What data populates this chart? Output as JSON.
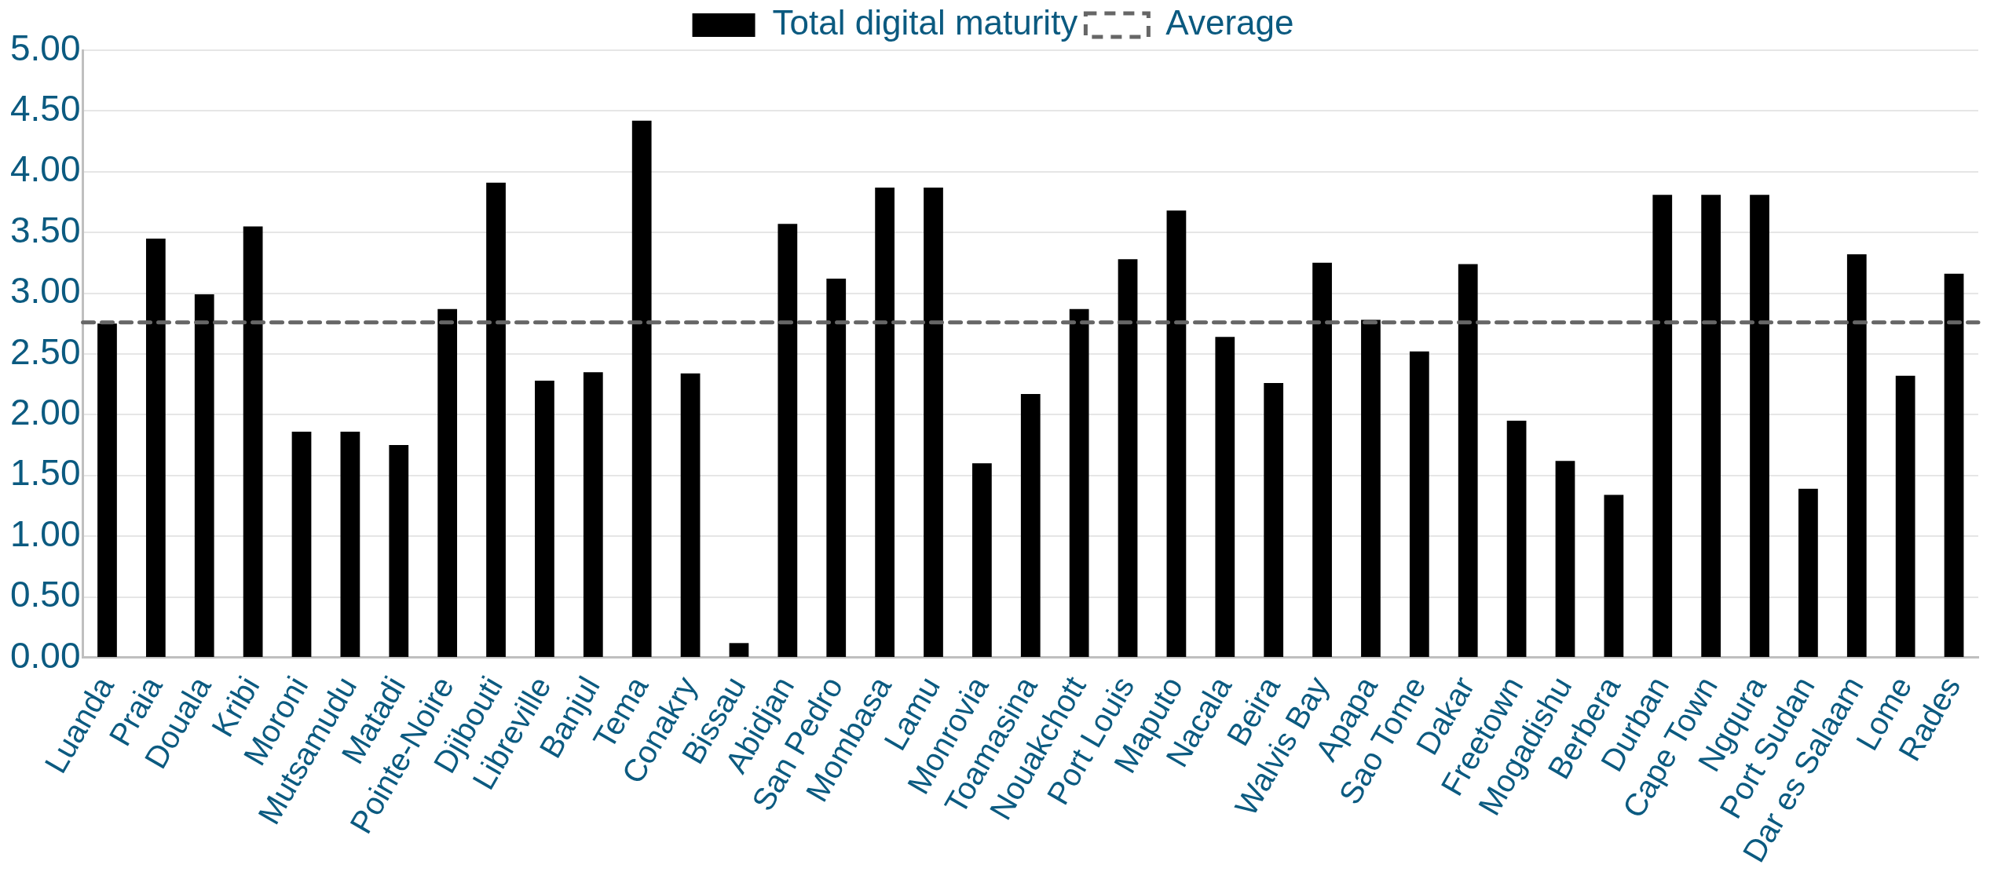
{
  "chart_data": {
    "type": "bar",
    "categories": [
      "Luanda",
      "Praia",
      "Douala",
      "Kribi",
      "Moroni",
      "Mutsamudu",
      "Matadi",
      "Pointe-Noire",
      "Djibouti",
      "Libreville",
      "Banjul",
      "Tema",
      "Conakry",
      "Bissau",
      "Abidjan",
      "San Pedro",
      "Mombasa",
      "Lamu",
      "Monrovia",
      "Toamasina",
      "Nouakchott",
      "Port Louis",
      "Maputo",
      "Nacala",
      "Beira",
      "Walvis Bay",
      "Apapa",
      "Sao Tome",
      "Dakar",
      "Freetown",
      "Mogadishu",
      "Berbera",
      "Durban",
      "Cape Town",
      "Ngqura",
      "Port Sudan",
      "Dar es Salaam",
      "Lome",
      "Rades"
    ],
    "series": [
      {
        "name": "Total digital maturity",
        "color": "#000000",
        "values": [
          2.75,
          3.45,
          2.99,
          3.55,
          1.86,
          1.86,
          1.75,
          2.87,
          3.91,
          2.28,
          2.35,
          4.42,
          2.34,
          0.12,
          3.57,
          3.12,
          3.87,
          3.87,
          1.6,
          2.17,
          2.87,
          3.28,
          3.68,
          2.64,
          2.26,
          3.25,
          2.78,
          2.52,
          3.24,
          1.95,
          1.62,
          1.34,
          3.81,
          3.81,
          3.81,
          1.39,
          3.32,
          2.32,
          3.16
        ]
      }
    ],
    "ref_lines": [
      {
        "axis": "y",
        "value": 2.76,
        "label": "Average",
        "color": "#666666",
        "line_style": "dashed"
      }
    ],
    "ylim": [
      0,
      5
    ],
    "yticks": [
      {
        "value": 0,
        "label": "0.00"
      },
      {
        "value": 0.5,
        "label": "0.50"
      },
      {
        "value": 1,
        "label": "1.00"
      },
      {
        "value": 1.5,
        "label": "1.50"
      },
      {
        "value": 2,
        "label": "2.00"
      },
      {
        "value": 2.5,
        "label": "2.50"
      },
      {
        "value": 3,
        "label": "3.00"
      },
      {
        "value": 3.5,
        "label": "3.50"
      },
      {
        "value": 4,
        "label": "4.00"
      },
      {
        "value": 4.5,
        "label": "4.50"
      },
      {
        "value": 5,
        "label": "5.00"
      }
    ],
    "grid": "y",
    "legend": "top"
  }
}
